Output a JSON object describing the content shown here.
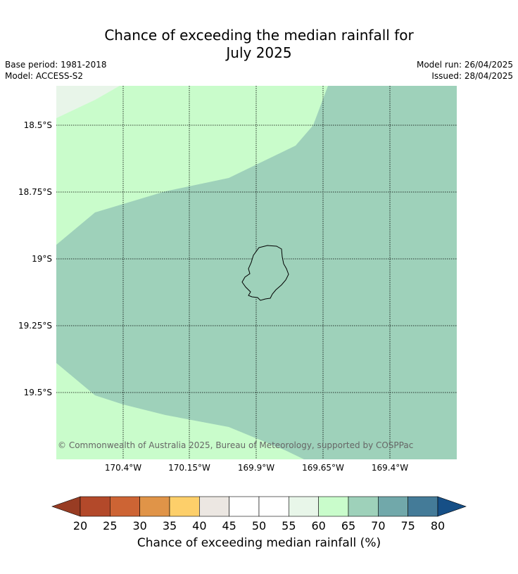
{
  "title_line1": "Chance of exceeding the median rainfall for",
  "title_line2": "July 2025",
  "meta_left": {
    "base_period": "Base period: 1981-2018",
    "model": "Model: ACCESS-S2"
  },
  "meta_right": {
    "model_run": "Model run: 26/04/2025",
    "issued": "Issued: 28/04/2025"
  },
  "map": {
    "lat_labels": [
      "18.5°S",
      "18.75°S",
      "19°S",
      "19.25°S",
      "19.5°S"
    ],
    "lon_labels": [
      "170.4°W",
      "170.15°W",
      "169.9°W",
      "169.65°W",
      "169.4°W"
    ],
    "copyright": "© Commonwealth of Australia 2025, Bureau of Meteorology, supported by COSPPac",
    "colors": {
      "light_green": "#c9fccb",
      "teal": "#9ed1ba",
      "pale": "#e8f5e9"
    }
  },
  "colorbar": {
    "ticks": [
      "20",
      "25",
      "30",
      "35",
      "40",
      "45",
      "50",
      "55",
      "60",
      "65",
      "70",
      "75",
      "80"
    ],
    "colors": [
      "#b3492a",
      "#cd6434",
      "#e09448",
      "#fdcf6a",
      "#ece7e2",
      "#ffffff",
      "#ffffff",
      "#e8f6e9",
      "#c9fccb",
      "#9ed1ba",
      "#71a8aa",
      "#447b98"
    ],
    "under_color": "#983c23",
    "over_color": "#164f86",
    "label": "Chance of exceeding median rainfall (%)"
  }
}
